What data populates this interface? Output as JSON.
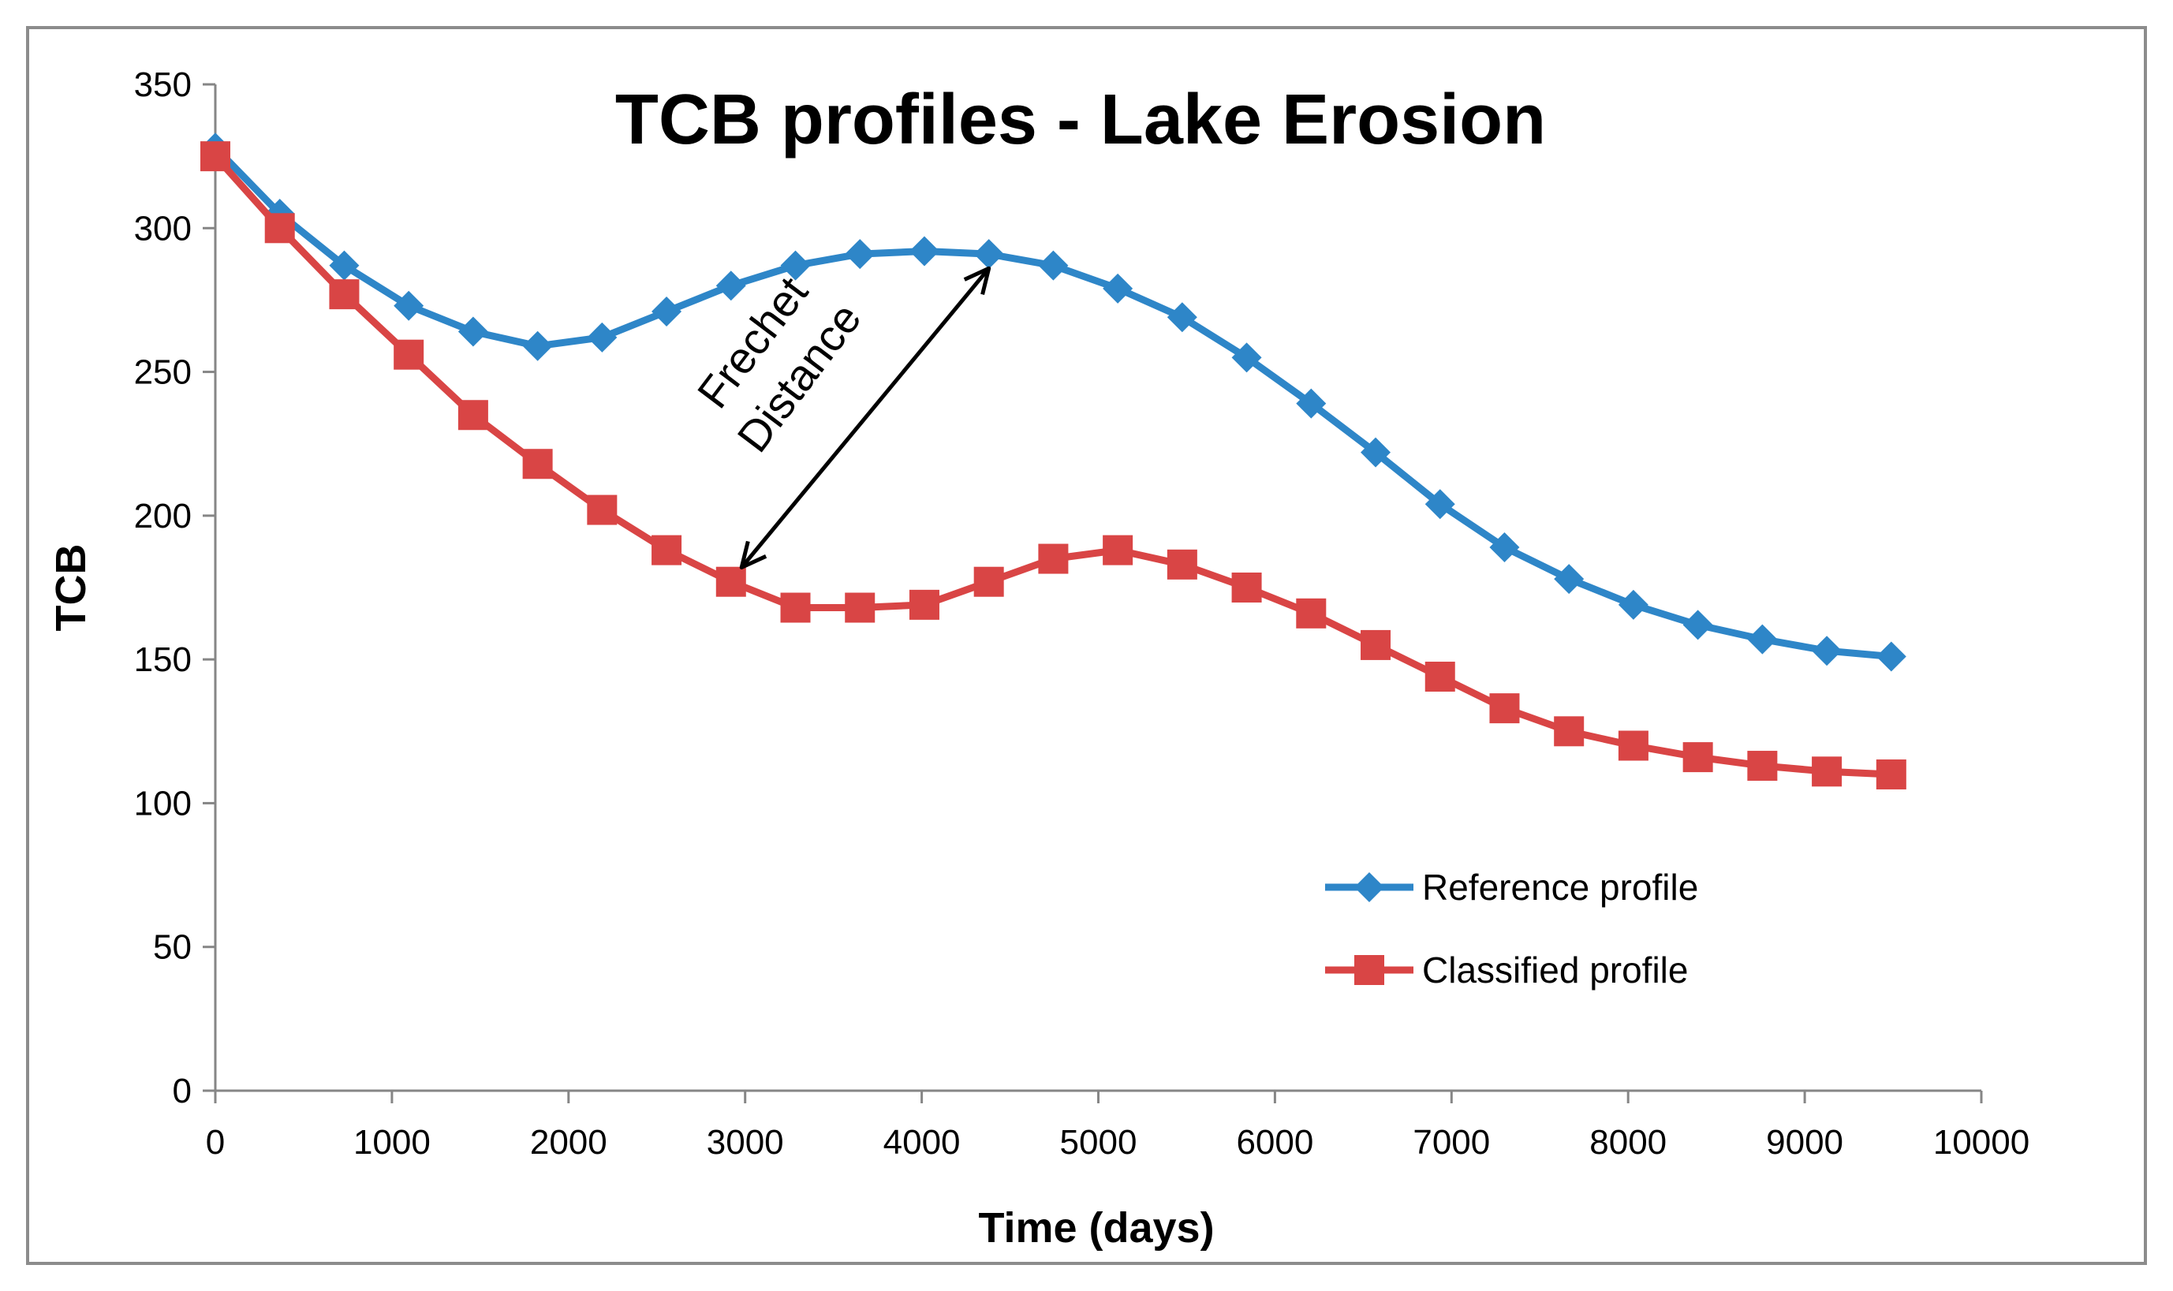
{
  "chart_data": {
    "type": "line",
    "title": "TCB profiles - Lake Erosion",
    "xlabel": "Time (days)",
    "ylabel": "TCB",
    "xlim": [
      0,
      10000
    ],
    "ylim": [
      0,
      350
    ],
    "xticks": [
      0,
      1000,
      2000,
      3000,
      4000,
      5000,
      6000,
      7000,
      8000,
      9000,
      10000
    ],
    "yticks": [
      0,
      50,
      100,
      150,
      200,
      250,
      300,
      350
    ],
    "grid": false,
    "legend_position": "bottom-right",
    "series": [
      {
        "name": "Reference profile",
        "color": "#2e86c8",
        "marker": "diamond",
        "x": [
          0,
          365,
          730,
          1095,
          1460,
          1825,
          2190,
          2555,
          2920,
          3285,
          3650,
          4015,
          4380,
          4745,
          5110,
          5475,
          5840,
          6205,
          6570,
          6935,
          7300,
          7665,
          8030,
          8395,
          8760,
          9125,
          9490
        ],
        "y": [
          328,
          305,
          287,
          273,
          264,
          259,
          262,
          271,
          280,
          287,
          291,
          292,
          291,
          287,
          279,
          269,
          255,
          239,
          222,
          204,
          189,
          178,
          169,
          162,
          157,
          153,
          151
        ]
      },
      {
        "name": "Classified profile",
        "color": "#d94545",
        "marker": "square",
        "x": [
          0,
          365,
          730,
          1095,
          1460,
          1825,
          2190,
          2555,
          2920,
          3285,
          3650,
          4015,
          4380,
          4745,
          5110,
          5475,
          5840,
          6205,
          6570,
          6935,
          7300,
          7665,
          8030,
          8395,
          8760,
          9125,
          9490
        ],
        "y": [
          325,
          300,
          277,
          256,
          235,
          218,
          202,
          188,
          177,
          168,
          168,
          169,
          177,
          185,
          188,
          183,
          175,
          166,
          155,
          144,
          133,
          125,
          120,
          116,
          113,
          111,
          110
        ]
      }
    ],
    "annotations": [
      {
        "text_lines": [
          "Frechet",
          "Distance"
        ],
        "arrow_from": [
          2980,
          182
        ],
        "arrow_to": [
          4380,
          286
        ]
      }
    ]
  }
}
